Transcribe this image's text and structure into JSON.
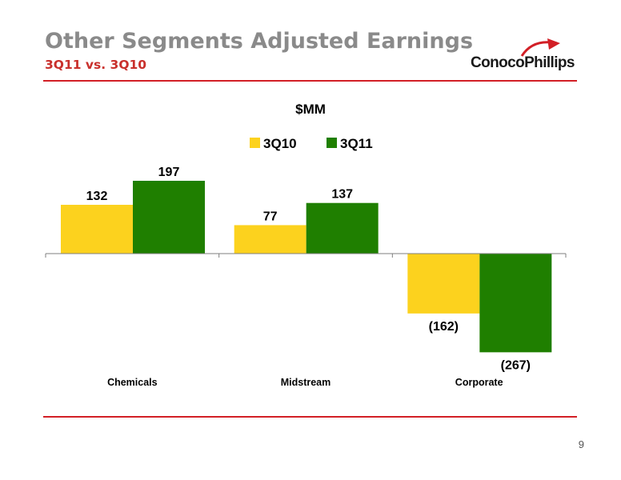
{
  "slide": {
    "title": "Other Segments Adjusted Earnings",
    "subtitle": "3Q11 vs. 3Q10",
    "logo_text": "ConocoPhillips",
    "page_number": "9"
  },
  "colors": {
    "accent_red": "#d21f26",
    "series_3Q10": "#fcd21e",
    "series_3Q11": "#1f7f00"
  },
  "chart_data": {
    "type": "bar",
    "title": "$MM",
    "categories": [
      "Chemicals",
      "Midstream",
      "Corporate"
    ],
    "series": [
      {
        "name": "3Q10",
        "values": [
          132,
          77,
          -162
        ],
        "labels": [
          "132",
          "77",
          "(162)"
        ]
      },
      {
        "name": "3Q11",
        "values": [
          197,
          137,
          -267
        ],
        "labels": [
          "197",
          "137",
          "(267)"
        ]
      }
    ],
    "ylim": [
      -280,
      230
    ],
    "legend": "top-center",
    "grid": false
  }
}
